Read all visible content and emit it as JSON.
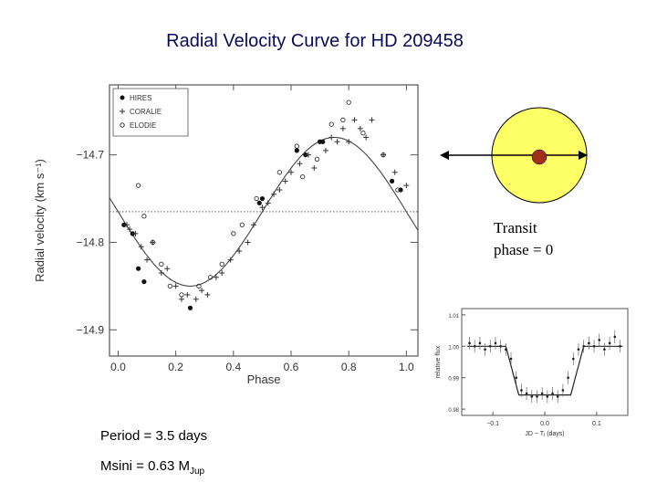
{
  "title": "Radial Velocity Curve for HD 209458",
  "colors": {
    "title": "#0a0a5a",
    "star": "#ffff66",
    "planet": "#a0301a"
  },
  "notes": {
    "transit_line1": "Transit",
    "transit_line2": "phase = 0",
    "period": "Period = 3.5 days",
    "msini_prefix": "Msini = 0.63 M",
    "msini_sub": "Jup"
  },
  "diagram": {
    "star": "yellow-star-disk",
    "planet": "planet-dot",
    "arrow": "orbit-direction-arrows"
  },
  "chart_data": [
    {
      "type": "scatter",
      "xlabel": "Phase",
      "ylabel": "Radial velocity (km s⁻¹)",
      "xlim": [
        -0.03,
        1.04
      ],
      "ylim": [
        -14.93,
        -14.62
      ],
      "xticks": [
        0.0,
        0.2,
        0.4,
        0.6,
        0.8,
        1.0
      ],
      "xtick_labels": [
        "0.0",
        "0.2",
        "0.4",
        "0.6",
        "0.8",
        "1.0"
      ],
      "yticks": [
        -14.7,
        -14.8,
        -14.9
      ],
      "ytick_labels": [
        "−14.7",
        "−14.8",
        "−14.9"
      ],
      "legend": [
        "HIRES",
        "CORALIE",
        "ELODIE"
      ],
      "legend_position": "top-left",
      "mean_velocity": -14.765,
      "fit_curve": {
        "amplitude": 0.085,
        "phase_of_minimum": 0.25,
        "phase_of_maximum": 0.75
      },
      "series": [
        {
          "name": "HIRES",
          "marker": "filled-circle",
          "x": [
            0.02,
            0.05,
            0.07,
            0.09,
            0.25,
            0.49,
            0.5,
            0.62,
            0.65,
            0.7,
            0.71,
            0.95,
            0.98
          ],
          "y": [
            -14.78,
            -14.79,
            -14.83,
            -14.845,
            -14.875,
            -14.755,
            -14.75,
            -14.695,
            -14.7,
            -14.685,
            -14.685,
            -14.73,
            -14.74
          ]
        },
        {
          "name": "CORALIE",
          "marker": "plus",
          "x": [
            0.03,
            0.04,
            0.06,
            0.08,
            0.1,
            0.12,
            0.15,
            0.17,
            0.2,
            0.22,
            0.24,
            0.27,
            0.29,
            0.31,
            0.34,
            0.36,
            0.39,
            0.42,
            0.45,
            0.47,
            0.5,
            0.52,
            0.54,
            0.56,
            0.58,
            0.6,
            0.63,
            0.66,
            0.68,
            0.72,
            0.74,
            0.76,
            0.78,
            0.8,
            0.82,
            0.84,
            0.86,
            0.88,
            0.92,
            0.96,
            1.0
          ],
          "y": [
            -14.78,
            -14.785,
            -14.79,
            -14.805,
            -14.82,
            -14.8,
            -14.835,
            -14.83,
            -14.85,
            -14.865,
            -14.86,
            -14.865,
            -14.855,
            -14.86,
            -14.84,
            -14.835,
            -14.82,
            -14.81,
            -14.8,
            -14.78,
            -14.76,
            -14.755,
            -14.745,
            -14.74,
            -14.73,
            -14.72,
            -14.71,
            -14.7,
            -14.715,
            -14.695,
            -14.68,
            -14.685,
            -14.67,
            -14.685,
            -14.66,
            -14.67,
            -14.68,
            -14.66,
            -14.7,
            -14.72,
            -14.735
          ]
        },
        {
          "name": "ELODIE",
          "marker": "open-circle",
          "x": [
            0.07,
            0.09,
            0.12,
            0.15,
            0.18,
            0.22,
            0.28,
            0.32,
            0.36,
            0.4,
            0.43,
            0.48,
            0.56,
            0.62,
            0.64,
            0.69,
            0.74,
            0.78,
            0.8,
            0.85,
            0.92,
            0.97
          ],
          "y": [
            -14.735,
            -14.77,
            -14.8,
            -14.825,
            -14.85,
            -14.86,
            -14.85,
            -14.84,
            -14.825,
            -14.79,
            -14.78,
            -14.75,
            -14.72,
            -14.69,
            -14.725,
            -14.705,
            -14.665,
            -14.66,
            -14.64,
            -14.675,
            -14.7,
            -14.74
          ]
        }
      ]
    },
    {
      "type": "scatter",
      "xlabel": "JD − Tⱼ (days)",
      "ylabel": "relative flux",
      "xlim": [
        -0.16,
        0.16
      ],
      "ylim": [
        0.978,
        1.012
      ],
      "xticks": [
        -0.1,
        0.0,
        0.1
      ],
      "xtick_labels": [
        "−0.1",
        "0.0",
        "0.1"
      ],
      "yticks": [
        1.01,
        1.0,
        0.99,
        0.98
      ],
      "ytick_labels": [
        "1.01",
        "1.00",
        "0.99",
        "0.98"
      ],
      "series": [
        {
          "name": "",
          "marker": "point-with-errorbar",
          "x": [
            -0.145,
            -0.135,
            -0.125,
            -0.115,
            -0.105,
            -0.095,
            -0.085,
            -0.075,
            -0.065,
            -0.055,
            -0.045,
            -0.035,
            -0.025,
            -0.015,
            -0.005,
            0.005,
            0.015,
            0.025,
            0.035,
            0.045,
            0.055,
            0.065,
            0.075,
            0.085,
            0.095,
            0.105,
            0.115,
            0.125,
            0.135,
            0.145
          ],
          "y": [
            1.001,
            1.0,
            1.001,
            0.999,
            1.0,
            1.001,
            1.0,
            0.999,
            0.996,
            0.99,
            0.986,
            0.985,
            0.984,
            0.984,
            0.985,
            0.984,
            0.985,
            0.984,
            0.986,
            0.99,
            0.996,
            0.999,
            1.0,
            1.001,
            1.0,
            1.002,
            0.999,
            1.001,
            1.003,
            1.0
          ]
        }
      ]
    }
  ]
}
